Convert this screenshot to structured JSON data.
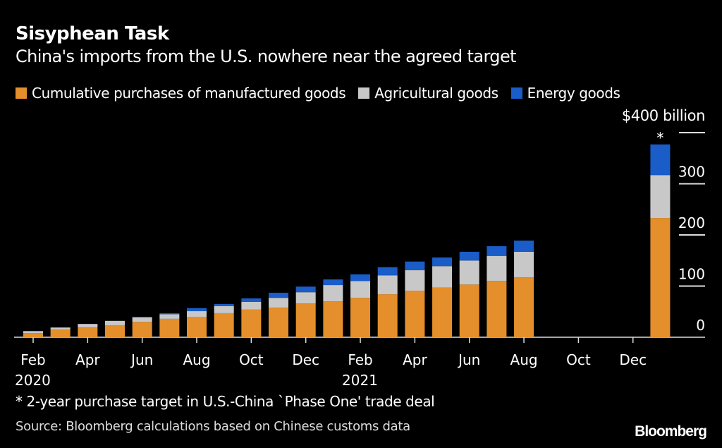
{
  "chart_data": {
    "type": "bar",
    "stacked": true,
    "title": "Sisyphean Task",
    "subtitle": "China's imports from the U.S. nowhere near the agreed target",
    "unit_label": "$400 billion",
    "categories": [
      "Feb 2020",
      "Mar 2020",
      "Apr 2020",
      "May 2020",
      "Jun 2020",
      "Jul 2020",
      "Aug 2020",
      "Sep 2020",
      "Oct 2020",
      "Nov 2020",
      "Dec 2020",
      "Jan 2021",
      "Feb 2021",
      "Mar 2021",
      "Apr 2021",
      "May 2021",
      "Jun 2021",
      "Jul 2021",
      "Aug 2021"
    ],
    "series": [
      {
        "name": "Cumulative purchases of manufactured goods",
        "color": "#e48f2b",
        "values": [
          8,
          15,
          19,
          23,
          30,
          36,
          40,
          47,
          54,
          58,
          66,
          70,
          77,
          84,
          91,
          97,
          103,
          110,
          117
        ]
      },
      {
        "name": "Agricultural goods",
        "color": "#c8c8c8",
        "values": [
          4,
          4,
          7,
          9,
          9,
          9,
          11,
          14,
          15,
          19,
          22,
          32,
          33,
          37,
          40,
          42,
          47,
          49,
          50
        ]
      },
      {
        "name": "Energy goods",
        "color": "#1a5cc8",
        "values": [
          0,
          0,
          0,
          0,
          1,
          2,
          6,
          4,
          7,
          10,
          11,
          11,
          13,
          16,
          17,
          17,
          17,
          19,
          22
        ]
      }
    ],
    "target": {
      "marker": "*",
      "position": "Jan 2022",
      "values": [
        233,
        84,
        60
      ]
    },
    "x_ticks": [
      {
        "label": "Feb",
        "year": "2020",
        "index": 0
      },
      {
        "label": "Apr",
        "year": "",
        "index": 2
      },
      {
        "label": "Jun",
        "year": "",
        "index": 4
      },
      {
        "label": "Aug",
        "year": "",
        "index": 6
      },
      {
        "label": "Oct",
        "year": "",
        "index": 8
      },
      {
        "label": "Dec",
        "year": "",
        "index": 10
      },
      {
        "label": "Feb",
        "year": "2021",
        "index": 12
      },
      {
        "label": "Apr",
        "year": "",
        "index": 14
      },
      {
        "label": "Jun",
        "year": "",
        "index": 16
      },
      {
        "label": "Aug",
        "year": "",
        "index": 18
      },
      {
        "label": "Oct",
        "year": "",
        "index": 20
      },
      {
        "label": "Dec",
        "year": "",
        "index": 22
      }
    ],
    "y_ticks": [
      "0",
      "100",
      "200",
      "300"
    ],
    "ylim": [
      0,
      400
    ],
    "y_axis_side": "right",
    "grid": true,
    "legend_position": "top"
  },
  "footnote": "* 2-year purchase target in U.S.-China `Phase One' trade deal",
  "source": "Source: Bloomberg calculations based on Chinese customs data",
  "logo": "Bloomberg"
}
